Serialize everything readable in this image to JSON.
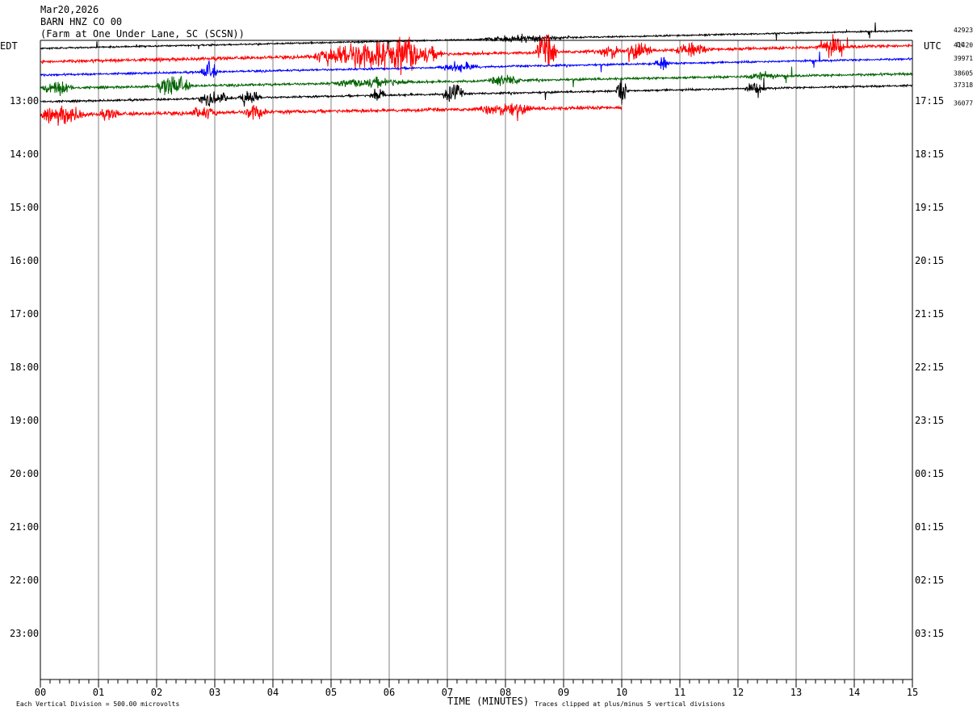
{
  "header": {
    "date": "Mar20,2026",
    "station": "BARN HNZ CO 00",
    "site": "(Farm at One Under Lane, SC (SCSN))"
  },
  "chart_data": {
    "type": "line",
    "x_axis": {
      "label": "TIME (MINUTES)",
      "range": [
        0,
        15
      ],
      "ticks": [
        "00",
        "01",
        "02",
        "03",
        "04",
        "05",
        "06",
        "07",
        "08",
        "09",
        "10",
        "11",
        "12",
        "13",
        "14",
        "15"
      ]
    },
    "left_axis": {
      "label": "EDT",
      "ticks": [
        "13:00",
        "14:00",
        "15:00",
        "16:00",
        "17:00",
        "18:00",
        "19:00",
        "20:00",
        "21:00",
        "22:00",
        "23:00"
      ]
    },
    "right_axis": {
      "label": "UTC",
      "ticks": [
        "17:15",
        "18:15",
        "19:15",
        "20:15",
        "21:15",
        "22:15",
        "23:15",
        "00:15",
        "01:15",
        "02:15",
        "03:15"
      ]
    },
    "dc_label": "DC",
    "footer": {
      "scale_note": "Each Vertical Division =  500.00 microvolts",
      "clip_note": "Traces clipped at plus/minus 5 vertical divisions"
    },
    "traces": [
      {
        "color": "#000000",
        "dc": "42923",
        "start_minute": 0,
        "end_minute": 15,
        "drift": 22,
        "noise": 0.8,
        "bursts": [
          [
            8.3,
            1.5,
            3
          ]
        ]
      },
      {
        "color": "#ff0000",
        "dc": "41420",
        "start_minute": 0,
        "end_minute": 15,
        "drift": 20,
        "noise": 1.6,
        "bursts": [
          [
            5.8,
            2.4,
            14
          ],
          [
            6.3,
            0.4,
            8
          ],
          [
            8.7,
            0.4,
            16
          ],
          [
            9.8,
            0.4,
            8
          ],
          [
            10.3,
            0.5,
            8
          ],
          [
            11.2,
            0.6,
            6
          ],
          [
            13.6,
            0.5,
            10
          ]
        ]
      },
      {
        "color": "#0000ff",
        "dc": "39971",
        "start_minute": 0,
        "end_minute": 15,
        "drift": 20,
        "noise": 1.0,
        "bursts": [
          [
            2.9,
            0.3,
            10
          ],
          [
            7.2,
            0.8,
            4
          ],
          [
            10.7,
            0.3,
            6
          ]
        ]
      },
      {
        "color": "#006400",
        "dc": "38605",
        "start_minute": 0,
        "end_minute": 15,
        "drift": 18,
        "noise": 1.2,
        "bursts": [
          [
            0.3,
            0.6,
            6
          ],
          [
            2.3,
            0.6,
            10
          ],
          [
            5.7,
            1.5,
            4
          ],
          [
            8.0,
            0.6,
            5
          ],
          [
            12.4,
            0.6,
            4
          ]
        ]
      },
      {
        "color": "#000000",
        "dc": "37318",
        "start_minute": 0,
        "end_minute": 15,
        "drift": 20,
        "noise": 1.0,
        "bursts": [
          [
            3.0,
            0.6,
            6
          ],
          [
            3.6,
            0.4,
            8
          ],
          [
            5.8,
            0.3,
            8
          ],
          [
            7.1,
            0.4,
            10
          ],
          [
            10.0,
            0.2,
            14
          ],
          [
            12.3,
            0.4,
            5
          ]
        ]
      },
      {
        "color": "#ff0000",
        "dc": "36077",
        "start_minute": 0,
        "end_minute": 10,
        "drift": 14,
        "noise": 1.8,
        "bursts": [
          [
            0.4,
            0.8,
            8
          ],
          [
            1.2,
            0.4,
            4
          ],
          [
            2.8,
            0.5,
            5
          ],
          [
            3.7,
            0.4,
            8
          ],
          [
            8.0,
            1.0,
            6
          ]
        ]
      }
    ]
  }
}
